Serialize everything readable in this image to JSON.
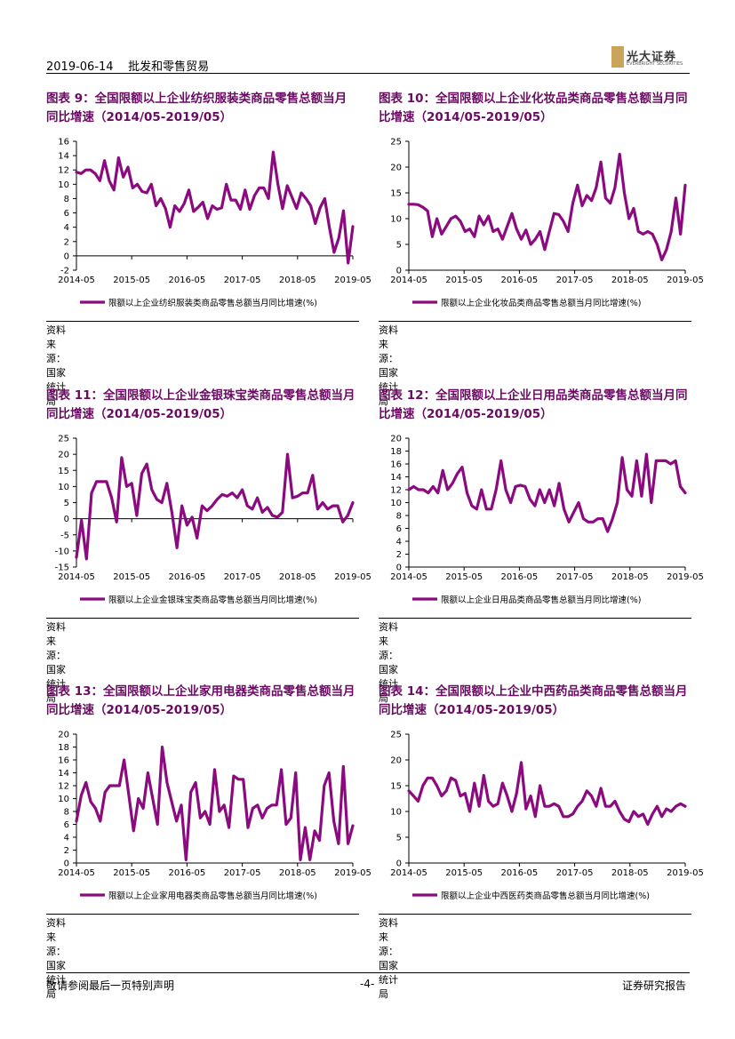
{
  "header": {
    "date": "2019-06-14",
    "section": "批发和零售贸易",
    "logo_cn": "光大证券",
    "logo_en": "EVERBRIGHT SECURITIES"
  },
  "footer": {
    "disclaimer": "敬请参阅最后一页特别声明",
    "page": "-4-",
    "report_type": "证券研究报告"
  },
  "colors": {
    "line": "#8b0a7f",
    "title": "#6b0a63"
  },
  "charts": [
    {
      "title": "图表 9：全国限额以上企业纺织服装类商品零售总额当月同比增速（2014/05-2019/05）",
      "source": "资料来源：国家统计局",
      "chart_data": {
        "type": "line",
        "ylim": [
          -2,
          16
        ],
        "yticks": [
          -2,
          0,
          2,
          4,
          6,
          8,
          10,
          12,
          14,
          16
        ],
        "xticks": [
          "2014-05",
          "2015-05",
          "2016-05",
          "2017-05",
          "2018-05",
          "2019-05"
        ],
        "series": [
          {
            "name": "限额以上企业纺织服装类商品零售总额当月同比增速(%)",
            "values": [
              11.7,
              11.5,
              12.0,
              12.0,
              11.5,
              10.5,
              13.3,
              10.5,
              9.2,
              13.7,
              11.0,
              12.4,
              9.5,
              10.0,
              9.0,
              8.8,
              10.0,
              7.0,
              8.0,
              6.6,
              4.0,
              7.0,
              6.2,
              7.3,
              9.2,
              6.2,
              6.8,
              7.5,
              5.2,
              7.0,
              6.5,
              6.7,
              10.0,
              7.8,
              7.8,
              6.5,
              9.2,
              6.5,
              8.4,
              9.5,
              9.5,
              8.0,
              14.5,
              10.0,
              6.6,
              9.8,
              8.2,
              6.6,
              8.8,
              8.0,
              7.0,
              4.5,
              6.7,
              8.0,
              4.0,
              0.5,
              2.5,
              6.3,
              -1.0,
              4.1
            ]
          }
        ]
      }
    },
    {
      "title": "图表 10：全国限额以上企业化妆品类商品零售总额当月同比增速（2014/05-2019/05）",
      "source": "资料来源：国家统计局",
      "chart_data": {
        "type": "line",
        "ylim": [
          0,
          25
        ],
        "yticks": [
          0,
          5,
          10,
          15,
          20,
          25
        ],
        "xticks": [
          "2014-05",
          "2015-05",
          "2016-05",
          "2017-05",
          "2018-05",
          "2019-05"
        ],
        "series": [
          {
            "name": "限额以上企业化妆品类商品零售总额当月同比增速(%)",
            "values": [
              12.8,
              12.8,
              12.7,
              12.2,
              11.5,
              6.5,
              10.0,
              7.0,
              8.5,
              10.0,
              10.5,
              9.5,
              7.5,
              8.0,
              6.5,
              10.5,
              8.8,
              10.5,
              7.5,
              8.0,
              6.0,
              8.5,
              11.0,
              8.0,
              6.0,
              7.8,
              5.0,
              6.0,
              7.5,
              4.0,
              7.5,
              11.0,
              10.8,
              9.5,
              7.5,
              13.0,
              16.5,
              12.5,
              14.5,
              13.5,
              16.0,
              21.0,
              14.0,
              13.0,
              16.0,
              22.5,
              15.0,
              10.0,
              12.0,
              7.5,
              7.0,
              7.5,
              7.0,
              5.0,
              2.0,
              4.0,
              7.5,
              14.0,
              7.0,
              16.5
            ]
          }
        ]
      }
    },
    {
      "title": "图表 11：全国限额以上企业金银珠宝类商品零售总额当月同比增速（2014/05-2019/05）",
      "source": "资料来源：国家统计局",
      "chart_data": {
        "type": "line",
        "ylim": [
          -15,
          25
        ],
        "yticks": [
          -15,
          -10,
          -5,
          0,
          5,
          10,
          15,
          20,
          25
        ],
        "xticks": [
          "2014-05",
          "2015-05",
          "2016-05",
          "2017-05",
          "2018-05",
          "2019-05"
        ],
        "series": [
          {
            "name": "限额以上企业金银珠宝类商品零售总额当月同比增速(%)",
            "values": [
              -12.0,
              -0.5,
              -12.5,
              8.0,
              11.5,
              11.5,
              11.5,
              6.5,
              -1.0,
              19.0,
              10.0,
              11.0,
              1.0,
              14.0,
              17.0,
              9.0,
              6.0,
              5.0,
              11.0,
              2.0,
              -9.0,
              4.0,
              -2.0,
              0.5,
              -6.0,
              4.0,
              2.5,
              4.0,
              6.0,
              7.5,
              7.0,
              8.0,
              6.5,
              9.0,
              4.0,
              3.0,
              6.5,
              2.0,
              3.5,
              1.0,
              0.5,
              2.0,
              20.0,
              6.5,
              7.0,
              8.0,
              8.0,
              13.5,
              3.0,
              5.0,
              3.0,
              4.0,
              4.0,
              -1.0,
              1.0,
              5.0
            ]
          }
        ]
      }
    },
    {
      "title": "图表 12：全国限额以上企业日用品类商品零售总额当月同比增速（2014/05-2019/05）",
      "source": "资料来源：国家统计局",
      "chart_data": {
        "type": "line",
        "ylim": [
          0,
          20
        ],
        "yticks": [
          0,
          2,
          4,
          6,
          8,
          10,
          12,
          14,
          16,
          18,
          20
        ],
        "xticks": [
          "2014-05",
          "2015-05",
          "2016-05",
          "2017-05",
          "2018-05",
          "2019-05"
        ],
        "series": [
          {
            "name": "限额以上企业日用品类商品零售总额当月同比增速(%)",
            "values": [
              12.0,
              12.5,
              12.0,
              12.0,
              11.5,
              12.5,
              11.5,
              15.0,
              12.0,
              13.0,
              14.5,
              15.5,
              11.5,
              9.5,
              9.0,
              12.0,
              9.0,
              9.0,
              12.0,
              16.5,
              12.0,
              10.0,
              12.5,
              12.7,
              12.5,
              10.5,
              9.5,
              12.0,
              10.0,
              12.0,
              9.5,
              13.0,
              9.0,
              7.0,
              8.5,
              10.0,
              7.5,
              7.0,
              7.0,
              7.5,
              7.5,
              5.5,
              7.5,
              10.0,
              17.0,
              12.0,
              11.0,
              16.5,
              11.0,
              17.5,
              10.0,
              16.5,
              16.5,
              16.5,
              16.0,
              16.5,
              12.5,
              11.5
            ]
          }
        ]
      }
    },
    {
      "title": "图表 13：全国限额以上企业家用电器类商品零售总额当月同比增速（2014/05-2019/05）",
      "source": "资料来源：国家统计局",
      "chart_data": {
        "type": "line",
        "ylim": [
          0,
          20
        ],
        "yticks": [
          0,
          2,
          4,
          6,
          8,
          10,
          12,
          14,
          16,
          18,
          20
        ],
        "xticks": [
          "2014-05",
          "2015-05",
          "2016-05",
          "2017-05",
          "2018-05",
          "2019-05"
        ],
        "series": [
          {
            "name": "限额以上企业家用电器类商品零售总额当月同比增速(%)",
            "values": [
              6.5,
              10.5,
              12.5,
              9.5,
              8.5,
              6.5,
              11.0,
              12.0,
              12.0,
              12.0,
              16.0,
              10.5,
              5.0,
              10.0,
              8.5,
              14.0,
              10.0,
              6.0,
              18.0,
              12.5,
              9.5,
              6.5,
              9.0,
              0.5,
              11.0,
              12.5,
              7.0,
              8.0,
              6.0,
              14.5,
              8.0,
              9.0,
              5.5,
              13.5,
              13.0,
              13.0,
              5.5,
              8.5,
              9.0,
              7.0,
              8.5,
              9.0,
              9.0,
              14.5,
              6.0,
              7.0,
              14.0,
              0.5,
              5.5,
              0.5,
              5.0,
              3.5,
              12.0,
              14.0,
              6.5,
              3.0,
              15.0,
              3.0,
              5.8
            ]
          }
        ]
      }
    },
    {
      "title": "图表 14：全国限额以上企业中西药品类商品零售总额当月同比增速（2014/05-2019/05）",
      "source": "资料来源：国家统计局",
      "chart_data": {
        "type": "line",
        "ylim": [
          0,
          25
        ],
        "yticks": [
          0,
          5,
          10,
          15,
          20,
          25
        ],
        "xticks": [
          "2014-05",
          "2015-05",
          "2016-05",
          "2017-05",
          "2018-05",
          "2019-05"
        ],
        "series": [
          {
            "name": "限额以上企业中西医药类商品零售总额当月同比增速(%)",
            "values": [
              14.0,
              13.0,
              12.0,
              15.0,
              16.5,
              16.5,
              15.0,
              13.0,
              14.0,
              16.5,
              16.0,
              13.0,
              13.5,
              10.0,
              15.5,
              11.0,
              17.0,
              12.0,
              11.0,
              11.5,
              15.5,
              13.0,
              10.0,
              13.5,
              19.5,
              10.5,
              13.0,
              9.0,
              15.0,
              11.0,
              11.0,
              11.5,
              11.0,
              9.0,
              9.0,
              9.5,
              11.0,
              12.0,
              14.0,
              13.0,
              11.0,
              14.5,
              11.0,
              11.0,
              12.0,
              10.0,
              8.5,
              8.0,
              10.0,
              9.0,
              9.5,
              7.5,
              9.5,
              11.0,
              9.0,
              10.5,
              10.0,
              11.0,
              11.5,
              11.0
            ]
          }
        ]
      }
    }
  ]
}
